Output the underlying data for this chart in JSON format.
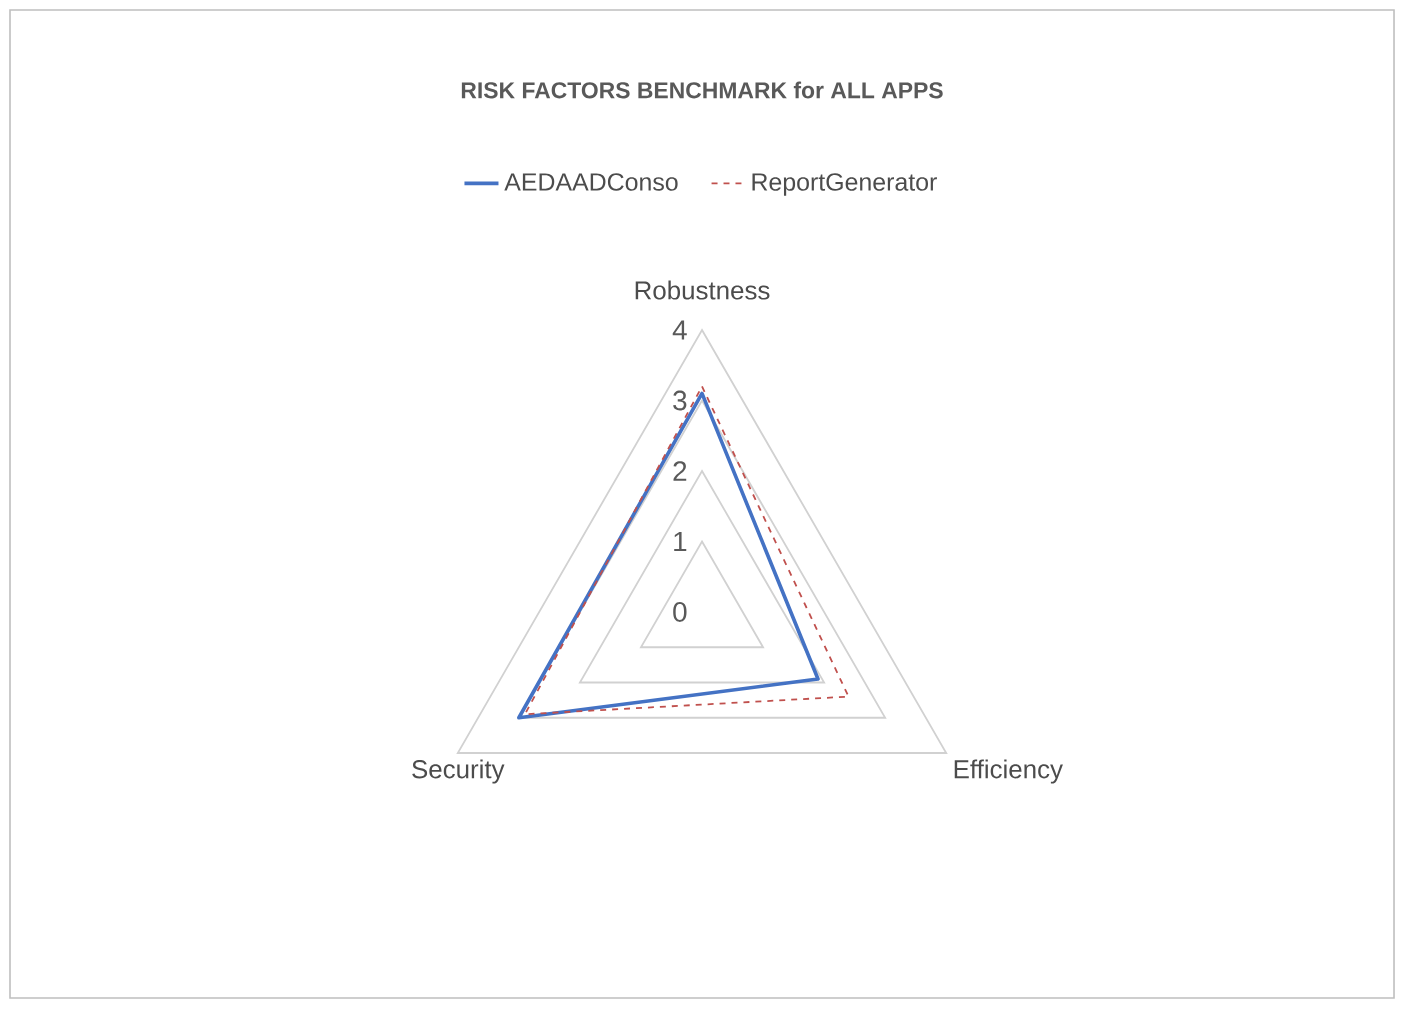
{
  "chart_data": {
    "type": "radar",
    "title": "RISK FACTORS BENCHMARK for ALL APPS",
    "categories": [
      "Robustness",
      "Efficiency",
      "Security"
    ],
    "series": [
      {
        "name": "AEDAADConso",
        "color": "#4472c4",
        "line_style": "solid",
        "values": [
          3.1,
          1.9,
          3.0
        ]
      },
      {
        "name": "ReportGenerator",
        "color": "#c0504d",
        "line_style": "dashed",
        "values": [
          3.2,
          2.4,
          2.9
        ]
      }
    ],
    "ylim": [
      0,
      4
    ],
    "yticks": [
      0,
      1,
      2,
      3,
      4
    ],
    "grid": true,
    "legend": "top",
    "marker": "none"
  }
}
